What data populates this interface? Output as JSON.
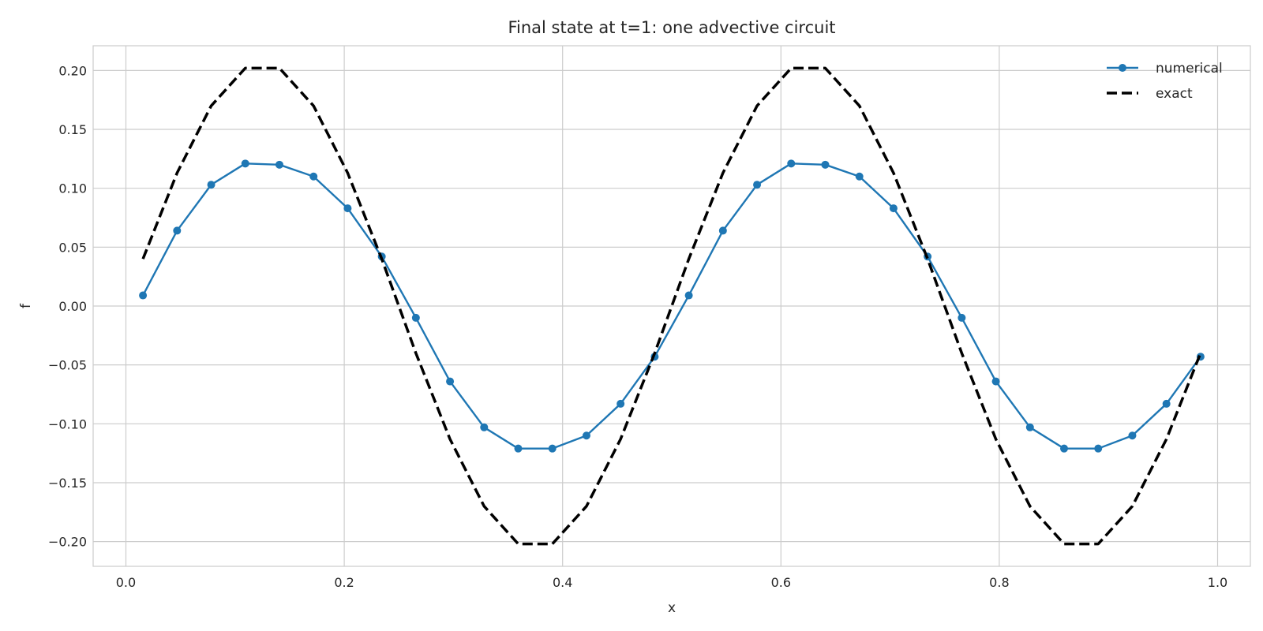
{
  "chart_data": {
    "type": "line",
    "title": "Final state at t=1: one advective circuit",
    "xlabel": "x",
    "ylabel": "f",
    "xlim": [
      -0.03,
      1.03
    ],
    "ylim": [
      -0.221,
      0.221
    ],
    "xticks": [
      0.0,
      0.2,
      0.4,
      0.6,
      0.8,
      1.0
    ],
    "xtick_labels": [
      "0.0",
      "0.2",
      "0.4",
      "0.6",
      "0.8",
      "1.0"
    ],
    "yticks": [
      0.2,
      0.15,
      0.1,
      0.05,
      0.0,
      -0.05,
      -0.1,
      -0.15,
      -0.2
    ],
    "ytick_labels": [
      "0.20",
      "0.15",
      "0.10",
      "0.05",
      "0.00",
      "−0.05",
      "−0.10",
      "−0.15",
      "−0.20"
    ],
    "grid": true,
    "legend_position": "top-right",
    "x": [
      0.015625,
      0.046875,
      0.078125,
      0.109375,
      0.140625,
      0.171875,
      0.203125,
      0.234375,
      0.265625,
      0.296875,
      0.328125,
      0.359375,
      0.390625,
      0.421875,
      0.453125,
      0.484375,
      0.515625,
      0.546875,
      0.578125,
      0.609375,
      0.640625,
      0.671875,
      0.703125,
      0.734375,
      0.765625,
      0.796875,
      0.828125,
      0.859375,
      0.890625,
      0.921875,
      0.953125,
      0.984375
    ],
    "series": [
      {
        "name": "numerical",
        "color": "#1f77b4",
        "style": "solid-with-markers",
        "values": [
          0.009,
          0.064,
          0.103,
          0.121,
          0.12,
          0.11,
          0.083,
          0.042,
          -0.01,
          -0.064,
          -0.103,
          -0.121,
          -0.121,
          -0.11,
          -0.083,
          -0.043,
          0.009,
          0.064,
          0.103,
          0.121,
          0.12,
          0.11,
          0.083,
          0.042,
          -0.01,
          -0.064,
          -0.103,
          -0.121,
          -0.121,
          -0.11,
          -0.083,
          -0.043
        ]
      },
      {
        "name": "exact",
        "color": "#000000",
        "style": "dashed",
        "values": [
          0.04,
          0.113,
          0.17,
          0.202,
          0.202,
          0.17,
          0.113,
          0.04,
          -0.04,
          -0.113,
          -0.17,
          -0.202,
          -0.202,
          -0.17,
          -0.113,
          -0.04,
          0.04,
          0.113,
          0.17,
          0.202,
          0.202,
          0.17,
          0.113,
          0.04,
          -0.04,
          -0.113,
          -0.17,
          -0.202,
          -0.202,
          -0.17,
          -0.113,
          -0.04
        ]
      }
    ]
  }
}
